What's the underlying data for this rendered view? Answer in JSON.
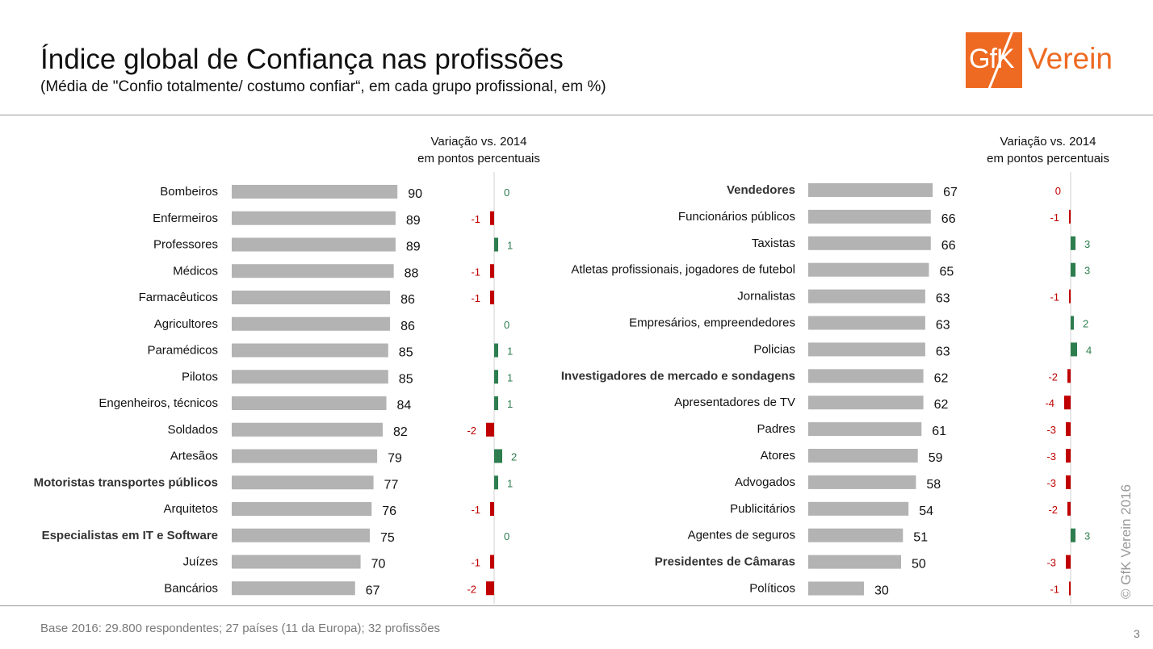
{
  "title": "Índice global de Confiança nas profissões",
  "subtitle": "(Média de \"Confio totalmente/ costumo confiar“, em cada grupo profissional, em %)",
  "logo": {
    "mark": "GfK",
    "word": "Verein",
    "color": "#ee6a22"
  },
  "change_header": {
    "line1": "Variação vs. 2014",
    "line2": "em pontos percentuais"
  },
  "footnote": "Base 2016: 29.800 respondentes; 27 países (11 da Europa); 32 profissões",
  "copyright": "© GfK Verein 2016",
  "page_number": "3",
  "colors": {
    "bar": "#b3b3b3",
    "positive": "#2e7d4f",
    "negative": "#c00000"
  },
  "chart_data": [
    {
      "type": "bar",
      "orientation": "horizontal",
      "categories": [
        "Bombeiros",
        "Enfermeiros",
        "Professores",
        "Médicos",
        "Farmacêuticos",
        "Agricultores",
        "Paramédicos",
        "Pilotos",
        "Engenheiros, técnicos",
        "Soldados",
        "Artesãos",
        "Motoristas transportes públicos",
        "Arquitetos",
        "Especialistas em IT e Software",
        "Juízes",
        "Bancários"
      ],
      "emphasized": [
        "Motoristas transportes públicos",
        "Especialistas em IT e Software"
      ],
      "values": [
        90,
        89,
        89,
        88,
        86,
        86,
        85,
        85,
        84,
        82,
        79,
        77,
        76,
        75,
        70,
        67
      ],
      "changes": [
        0,
        -1,
        1,
        -1,
        -1,
        0,
        1,
        1,
        1,
        -2,
        2,
        1,
        -1,
        0,
        -1,
        -2
      ],
      "change_label": "Variação vs. 2014 em pontos percentuais"
    },
    {
      "type": "bar",
      "orientation": "horizontal",
      "categories": [
        "Vendedores",
        "Funcionários públicos",
        "Taxistas",
        "Atletas profissionais, jogadores de futebol",
        "Jornalistas",
        "Empresários, empreendedores",
        "Policias",
        "Investigadores de mercado e sondagens",
        "Apresentadores de TV",
        "Padres",
        "Atores",
        "Advogados",
        "Publicitários",
        "Agentes de seguros",
        "Presidentes de Câmaras",
        "Políticos"
      ],
      "emphasized": [
        "Vendedores",
        "Investigadores de mercado e sondagens",
        "Presidentes de Câmaras"
      ],
      "values": [
        67,
        66,
        66,
        65,
        63,
        63,
        63,
        62,
        62,
        61,
        59,
        58,
        54,
        51,
        50,
        30
      ],
      "changes": [
        0,
        -1,
        3,
        3,
        -1,
        2,
        4,
        -2,
        -4,
        -3,
        -3,
        -3,
        -2,
        3,
        -3,
        -1
      ],
      "change_label": "Variação vs. 2014 em pontos percentuais"
    }
  ]
}
